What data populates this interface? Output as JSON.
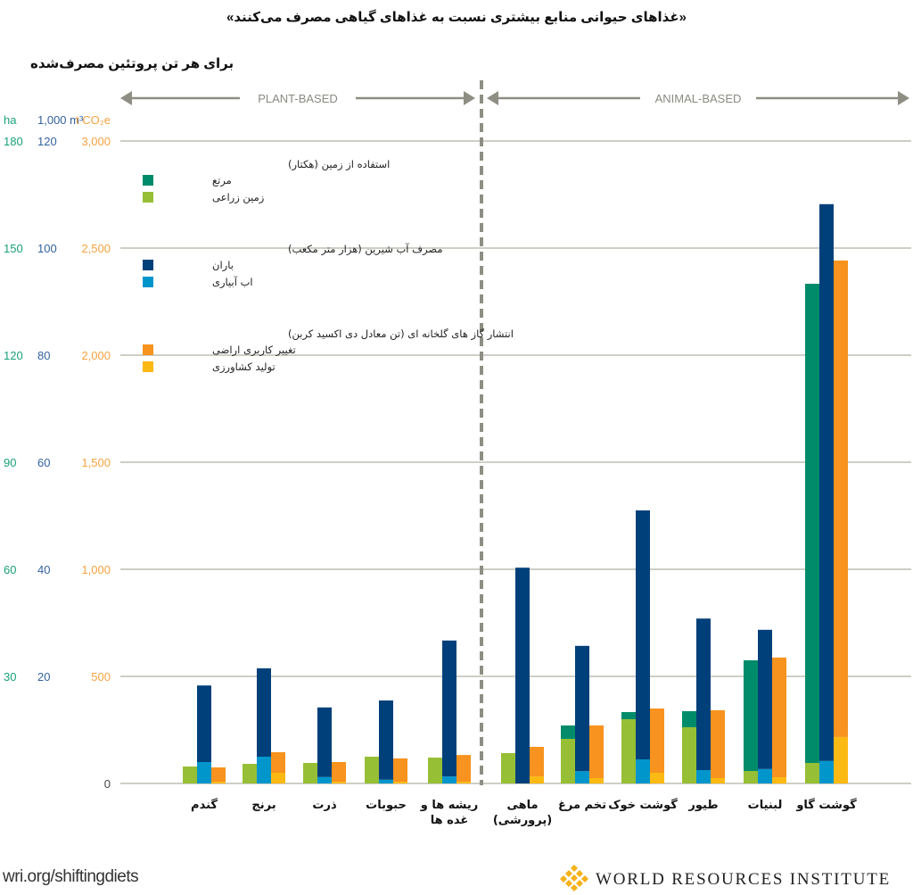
{
  "title": "«غذاهای حیوانی منابع بیشتری نسبت به غذاهای گیاهی مصرف می‌کنند»",
  "subtitle": "برای هر تن پروتئین مصرف‌شده",
  "footer": {
    "url": "wri.org/shiftingdiets",
    "org": "WORLD RESOURCES INSTITUTE",
    "logo_icon": "wri-logo-icon"
  },
  "colors": {
    "pasture": "#008c6a",
    "cropland": "#97bf36",
    "rain": "#00407a",
    "irrigation": "#0096cc",
    "landuse_change": "#f7931e",
    "agri_production": "#fdb913",
    "ha_axis": "#1aa17a",
    "water_axis": "#34639e",
    "co2_axis": "#f7a240",
    "grid": "#bdbdb4",
    "divider": "#8e8e84"
  },
  "chart_data": {
    "type": "bar",
    "title": "«غذاهای حیوانی منابع بیشتری نسبت به غذاهای گیاهی مصرف می‌کنند»",
    "subtitle": "برای هر تن پروتئین مصرف‌شده",
    "group_labels": {
      "plant": "PLANT-BASED",
      "animal": "ANIMAL-BASED"
    },
    "axes": [
      {
        "unit": "ha",
        "ticks": [
          "0",
          "30",
          "60",
          "90",
          "120",
          "150",
          "180"
        ],
        "range": [
          0,
          180
        ]
      },
      {
        "unit": "1,000 m³",
        "ticks": [
          "",
          "20",
          "40",
          "60",
          "80",
          "100",
          "120"
        ],
        "range": [
          0,
          120
        ]
      },
      {
        "unit": "t CO₂e",
        "ticks": [
          "0",
          "500",
          "1,000",
          "1,500",
          "2,000",
          "2,500",
          "3,000"
        ],
        "range": [
          0,
          3000
        ]
      }
    ],
    "grid": true,
    "legend_position": "top-left",
    "legend": [
      {
        "title": "استفاده از زمین (هکتار)",
        "items": [
          {
            "key": "pasture",
            "label": "مرتع"
          },
          {
            "key": "cropland",
            "label": "زمین زراعی"
          }
        ]
      },
      {
        "title": "مصرف آب شیرین (هزار متر مکعب)",
        "items": [
          {
            "key": "rain",
            "label": "باران"
          },
          {
            "key": "irrigation",
            "label": "اب آبیاری"
          }
        ]
      },
      {
        "title": "انتشار گاز های گلخانه ای (تن معادل دی اکسید کربن)",
        "items": [
          {
            "key": "landuse_change",
            "label": "تغییر کاربری اراضی"
          },
          {
            "key": "agri_production",
            "label": "تولید کشاورزی"
          }
        ]
      }
    ],
    "categories": [
      "گندم",
      "برنج",
      "ذرت",
      "حبوبات",
      "ریشه ها و\nغده ها",
      "ماهی\n(پرورشی)",
      "تخم مرغ",
      "گوشت خوک",
      "طیور",
      "لبنیات",
      "گوشت گاو"
    ],
    "plant_count": 5,
    "series": [
      {
        "name": "زمین زراعی (ha)",
        "key": "cropland",
        "axis": 0,
        "values": [
          4.75,
          5.5,
          5.75,
          7.5,
          7.25,
          8.5,
          12.5,
          18,
          15.75,
          3.5,
          5.75
        ]
      },
      {
        "name": "مرتع (ha)",
        "key": "pasture",
        "axis": 0,
        "values": [
          0,
          0,
          0,
          0,
          0,
          0,
          3.75,
          2,
          4.5,
          31,
          134.25
        ]
      },
      {
        "name": "اب آبیاری (1,000 m³)",
        "key": "irrigation",
        "axis": 1,
        "values": [
          4,
          5,
          1.2,
          0.7,
          1.3,
          0,
          2.3,
          4.5,
          2.5,
          2.7,
          4.2
        ]
      },
      {
        "name": "باران (1,000 m³)",
        "key": "rain",
        "axis": 1,
        "values": [
          14.3,
          16.5,
          13,
          14.8,
          25.4,
          40.3,
          23.4,
          46.5,
          28.3,
          26,
          104
        ]
      },
      {
        "name": "تولید کشاورزی (t CO₂e)",
        "key": "agri_production",
        "axis": 2,
        "values": [
          8,
          50,
          8,
          8,
          8,
          33,
          25,
          50,
          25,
          29,
          217
        ]
      },
      {
        "name": "تغییر کاربری اراضی (t CO₂e)",
        "key": "landuse_change",
        "axis": 2,
        "values": [
          67,
          96,
          92,
          109,
          125,
          138,
          246,
          300,
          317,
          559,
          2225
        ]
      }
    ]
  }
}
